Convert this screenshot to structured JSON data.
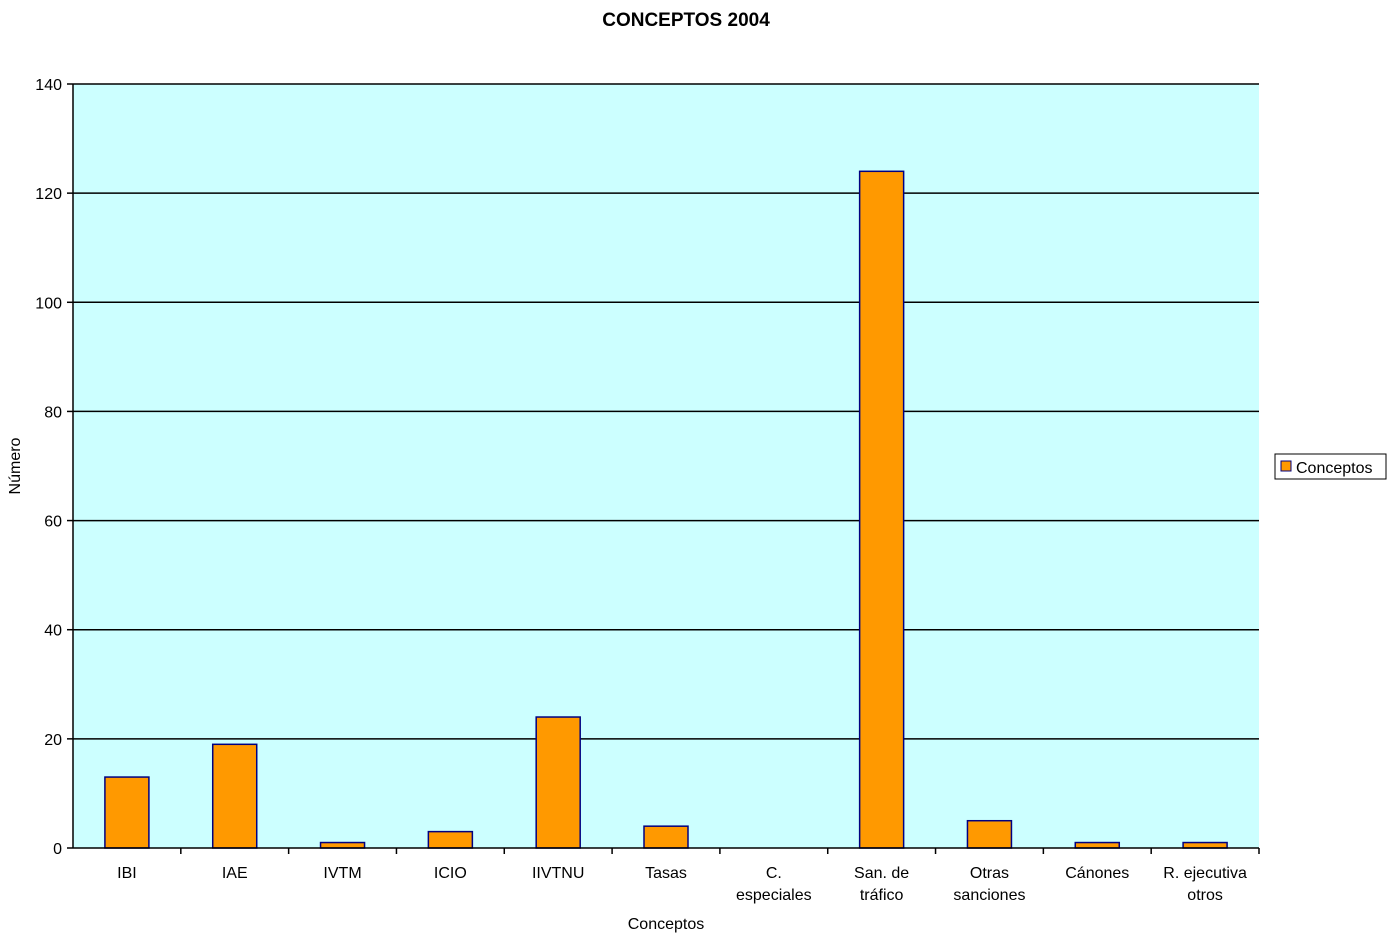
{
  "chart_data": {
    "type": "bar",
    "title": "CONCEPTOS 2004",
    "xlabel": "Conceptos",
    "ylabel": "Número",
    "categories": [
      [
        "IBI"
      ],
      [
        "IAE"
      ],
      [
        "IVTM"
      ],
      [
        "ICIO"
      ],
      [
        "IIVTNU"
      ],
      [
        "Tasas"
      ],
      [
        "C.",
        "especiales"
      ],
      [
        "San. de",
        "tráfico"
      ],
      [
        "Otras",
        "sanciones"
      ],
      [
        "Cánones"
      ],
      [
        "R. ejecutiva",
        "otros"
      ]
    ],
    "series": [
      {
        "name": "Conceptos",
        "values": [
          13,
          19,
          1,
          3,
          24,
          4,
          0,
          124,
          5,
          1,
          1
        ]
      }
    ],
    "yticks": [
      "0",
      "20",
      "40",
      "60",
      "80",
      "100",
      "120",
      "140"
    ],
    "ylim": [
      0,
      140
    ],
    "grid": true,
    "legend": "right",
    "colors": {
      "plot_background": "#ccffff",
      "bar_fill": "#ff9900",
      "bar_stroke": "#000080",
      "grid": "#000000",
      "axis": "#000000"
    }
  }
}
